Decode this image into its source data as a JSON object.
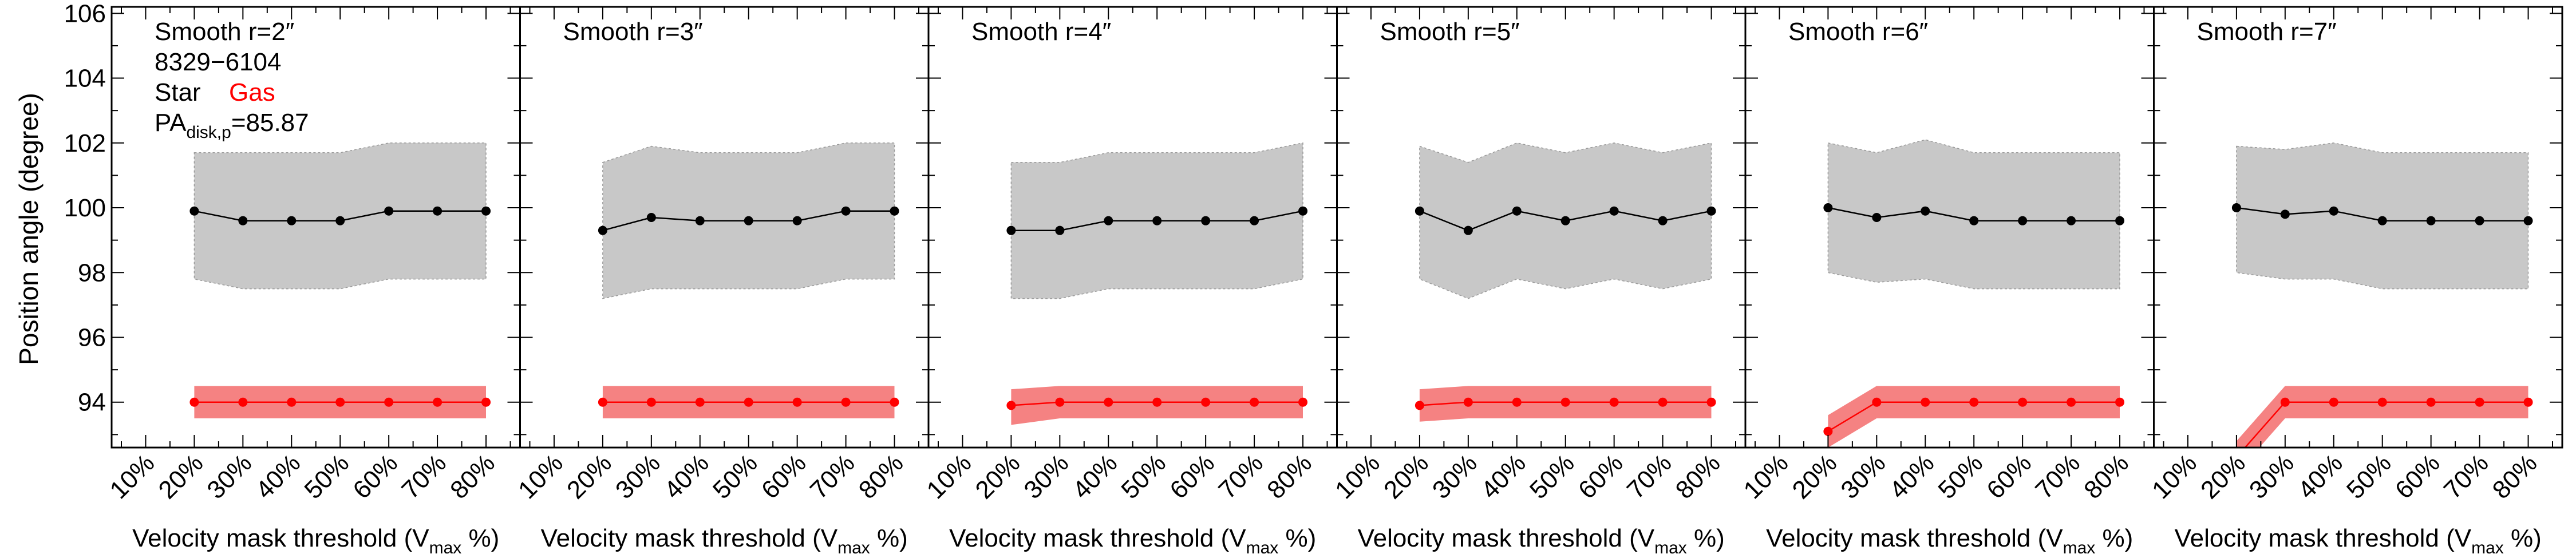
{
  "figure": {
    "ylabel": "Position angle (degree)",
    "xlabel_main": "Velocity mask threshold (V",
    "xlabel_sub": "max",
    "xlabel_end": " %)",
    "yticks": [
      94,
      96,
      98,
      100,
      102,
      104,
      106
    ],
    "ytick_labels": [
      "94",
      "96",
      "98",
      "100",
      "102",
      "104",
      "106"
    ],
    "xticks": [
      10,
      20,
      30,
      40,
      50,
      60,
      70,
      80
    ],
    "xtick_labels": [
      "10%",
      "20%",
      "30%",
      "40%",
      "50%",
      "60%",
      "70%",
      "80%"
    ],
    "galaxy_id": "8329−6104",
    "legend_star": "Star",
    "legend_gas": "Gas",
    "pa_label": "PA",
    "pa_sub": "disk,p",
    "pa_value": "=85.87"
  },
  "colors": {
    "star_line": "#000000",
    "star_band": "#c8c8c8",
    "gas_line": "#ff0000",
    "gas_band": "#f58282"
  },
  "chart_data": [
    {
      "type": "line",
      "title": "Smooth r=2″",
      "x": [
        20,
        30,
        40,
        50,
        60,
        70,
        80
      ],
      "xlim": [
        3,
        87
      ],
      "ylim": [
        92.6,
        106.2
      ],
      "series": [
        {
          "name": "Star",
          "values": [
            99.9,
            99.6,
            99.6,
            99.6,
            99.9,
            99.9,
            99.9
          ],
          "band_low": [
            97.8,
            97.5,
            97.5,
            97.5,
            97.8,
            97.8,
            97.8
          ],
          "band_high": [
            101.7,
            101.7,
            101.7,
            101.7,
            102.0,
            102.0,
            102.0
          ]
        },
        {
          "name": "Gas",
          "values": [
            94.0,
            94.0,
            94.0,
            94.0,
            94.0,
            94.0,
            94.0
          ],
          "band_low": [
            93.5,
            93.5,
            93.5,
            93.5,
            93.5,
            93.5,
            93.5
          ],
          "band_high": [
            94.5,
            94.5,
            94.5,
            94.5,
            94.5,
            94.5,
            94.5
          ]
        }
      ]
    },
    {
      "type": "line",
      "title": "Smooth r=3″",
      "x": [
        20,
        30,
        40,
        50,
        60,
        70,
        80
      ],
      "xlim": [
        3,
        87
      ],
      "ylim": [
        92.6,
        106.2
      ],
      "series": [
        {
          "name": "Star",
          "values": [
            99.3,
            99.7,
            99.6,
            99.6,
            99.6,
            99.9,
            99.9
          ],
          "band_low": [
            97.2,
            97.5,
            97.5,
            97.5,
            97.5,
            97.8,
            97.8
          ],
          "band_high": [
            101.4,
            101.9,
            101.7,
            101.7,
            101.7,
            102.0,
            102.0
          ]
        },
        {
          "name": "Gas",
          "values": [
            94.0,
            94.0,
            94.0,
            94.0,
            94.0,
            94.0,
            94.0
          ],
          "band_low": [
            93.5,
            93.5,
            93.5,
            93.5,
            93.5,
            93.5,
            93.5
          ],
          "band_high": [
            94.5,
            94.5,
            94.5,
            94.5,
            94.5,
            94.5,
            94.5
          ]
        }
      ]
    },
    {
      "type": "line",
      "title": "Smooth r=4″",
      "x": [
        20,
        30,
        40,
        50,
        60,
        70,
        80
      ],
      "xlim": [
        3,
        87
      ],
      "ylim": [
        92.6,
        106.2
      ],
      "series": [
        {
          "name": "Star",
          "values": [
            99.3,
            99.3,
            99.6,
            99.6,
            99.6,
            99.6,
            99.9
          ],
          "band_low": [
            97.2,
            97.2,
            97.5,
            97.5,
            97.5,
            97.5,
            97.8
          ],
          "band_high": [
            101.4,
            101.4,
            101.7,
            101.7,
            101.7,
            101.7,
            102.0
          ]
        },
        {
          "name": "Gas",
          "values": [
            93.9,
            94.0,
            94.0,
            94.0,
            94.0,
            94.0,
            94.0
          ],
          "band_low": [
            93.3,
            93.5,
            93.5,
            93.5,
            93.5,
            93.5,
            93.5
          ],
          "band_high": [
            94.4,
            94.5,
            94.5,
            94.5,
            94.5,
            94.5,
            94.5
          ]
        }
      ]
    },
    {
      "type": "line",
      "title": "Smooth r=5″",
      "x": [
        20,
        30,
        40,
        50,
        60,
        70,
        80
      ],
      "xlim": [
        3,
        87
      ],
      "ylim": [
        92.6,
        106.2
      ],
      "series": [
        {
          "name": "Star",
          "values": [
            99.9,
            99.3,
            99.9,
            99.6,
            99.9,
            99.6,
            99.9
          ],
          "band_low": [
            97.8,
            97.2,
            97.8,
            97.5,
            97.8,
            97.5,
            97.8
          ],
          "band_high": [
            101.9,
            101.4,
            102.0,
            101.7,
            102.0,
            101.7,
            102.0
          ]
        },
        {
          "name": "Gas",
          "values": [
            93.9,
            94.0,
            94.0,
            94.0,
            94.0,
            94.0,
            94.0
          ],
          "band_low": [
            93.4,
            93.5,
            93.5,
            93.5,
            93.5,
            93.5,
            93.5
          ],
          "band_high": [
            94.4,
            94.5,
            94.5,
            94.5,
            94.5,
            94.5,
            94.5
          ]
        }
      ]
    },
    {
      "type": "line",
      "title": "Smooth r=6″",
      "x": [
        20,
        30,
        40,
        50,
        60,
        70,
        80
      ],
      "xlim": [
        3,
        87
      ],
      "ylim": [
        92.6,
        106.2
      ],
      "series": [
        {
          "name": "Star",
          "values": [
            100.0,
            99.7,
            99.9,
            99.6,
            99.6,
            99.6,
            99.6
          ],
          "band_low": [
            98.0,
            97.7,
            97.8,
            97.5,
            97.5,
            97.5,
            97.5
          ],
          "band_high": [
            102.0,
            101.7,
            102.1,
            101.7,
            101.7,
            101.7,
            101.7
          ]
        },
        {
          "name": "Gas",
          "values": [
            93.1,
            94.0,
            94.0,
            94.0,
            94.0,
            94.0,
            94.0
          ],
          "band_low": [
            92.6,
            93.5,
            93.5,
            93.5,
            93.5,
            93.5,
            93.5
          ],
          "band_high": [
            93.6,
            94.5,
            94.5,
            94.5,
            94.5,
            94.5,
            94.5
          ]
        }
      ]
    },
    {
      "type": "line",
      "title": "Smooth r=7″",
      "x": [
        20,
        30,
        40,
        50,
        60,
        70,
        80
      ],
      "xlim": [
        3,
        87
      ],
      "ylim": [
        92.6,
        106.2
      ],
      "series": [
        {
          "name": "Star",
          "values": [
            100.0,
            99.8,
            99.9,
            99.6,
            99.6,
            99.6,
            99.6
          ],
          "band_low": [
            98.0,
            97.8,
            97.8,
            97.5,
            97.5,
            97.5,
            97.5
          ],
          "band_high": [
            101.9,
            101.8,
            102.0,
            101.7,
            101.7,
            101.7,
            101.7
          ]
        },
        {
          "name": "Gas",
          "values": [
            92.3,
            94.0,
            94.0,
            94.0,
            94.0,
            94.0,
            94.0
          ],
          "band_low": [
            91.8,
            93.5,
            93.5,
            93.5,
            93.5,
            93.5,
            93.5
          ],
          "band_high": [
            92.8,
            94.5,
            94.5,
            94.5,
            94.5,
            94.5,
            94.5
          ]
        }
      ]
    }
  ]
}
